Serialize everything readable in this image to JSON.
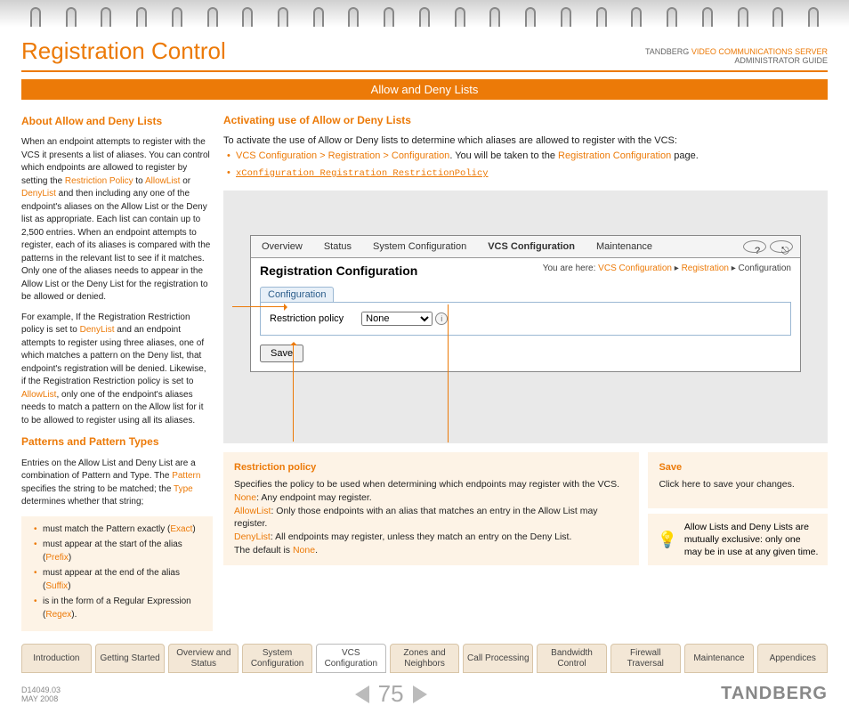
{
  "brand": {
    "company": "TANDBERG",
    "product": "VIDEO COMMUNICATIONS SERVER",
    "subtitle": "ADMINISTRATOR GUIDE",
    "logo": "TANDBERG"
  },
  "page": {
    "title": "Registration Control",
    "section_bar": "Allow and Deny Lists",
    "number": "75"
  },
  "docinfo": {
    "id": "D14049.03",
    "date": "MAY 2008"
  },
  "left": {
    "h1": "About Allow and Deny Lists",
    "p1a": "When an endpoint attempts to register with the VCS it presents a list of aliases. You can control which endpoints are allowed to register by setting the ",
    "p1b": "Restriction Policy",
    "p1c": " to ",
    "p1d": "AllowList",
    "p1e": " or ",
    "p1f": "DenyList",
    "p1g": " and then including any one of the endpoint's aliases on the Allow List or the Deny list as appropriate. Each list can contain up to 2,500 entries. When an endpoint attempts to register, each of its aliases is compared with the patterns in the relevant list to see if it matches.  Only one of the aliases needs to appear in the Allow List or the Deny List for the registration to be allowed or denied.",
    "p2a": "For example, If the Registration Restriction policy is set to ",
    "p2b": "DenyList",
    "p2c": " and an endpoint attempts to register using three aliases, one of which matches a pattern on the Deny list, that endpoint's registration will be denied. Likewise, if the Registration Restriction policy is set to ",
    "p2d": "AllowList",
    "p2e": ", only one of the endpoint's aliases needs to match a pattern on the Allow list for it to be allowed to register using all its aliases.",
    "h2": "Patterns and Pattern Types",
    "p3a": "Entries on the Allow List and Deny List are a combination of Pattern and Type.  The ",
    "p3b": "Pattern",
    "p3c": " specifies the string to be matched; the ",
    "p3d": "Type",
    "p3e": " determines whether that string;",
    "li1a": "must match the Pattern exactly (",
    "li1b": "Exact",
    "li1c": ")",
    "li2a": "must appear at the start of the alias (",
    "li2b": "Prefix",
    "li2c": ")",
    "li3a": "must appear at the end of the alias (",
    "li3b": "Suffix",
    "li3c": ")",
    "li4a": "is in the form of a Regular Expression (",
    "li4b": "Regex",
    "li4c": ")."
  },
  "right": {
    "h1": "Activating use of Allow or Deny Lists",
    "intro": "To activate the use of Allow or Deny lists to determine which aliases are allowed to register with the VCS:",
    "b1a": "VCS Configuration > Registration > Configuration",
    "b1b": ". You will be taken to the ",
    "b1c": "Registration Configuration",
    "b1d": " page.",
    "b2": "xConfiguration Registration RestrictionPolicy"
  },
  "app": {
    "tabs": [
      "Overview",
      "Status",
      "System Configuration",
      "VCS Configuration",
      "Maintenance"
    ],
    "active_tab": 3,
    "page_title": "Registration Configuration",
    "crumb_prefix": "You are here: ",
    "crumb1": "VCS Configuration",
    "crumb2": "Registration",
    "crumb3": "Configuration",
    "mini_tab": "Configuration",
    "field_label": "Restriction policy",
    "select_value": "None",
    "save": "Save"
  },
  "callouts": {
    "a_h": "Restriction policy",
    "a_p1": "Specifies the policy to be used when determining which endpoints may register with the VCS.",
    "a_none": "None",
    "a_none_t": ": Any endpoint may register.",
    "a_allow": "AllowList",
    "a_allow_t": ": Only those endpoints with an alias that matches an entry in the Allow List may register.",
    "a_deny": "DenyList",
    "a_deny_t": ": All endpoints may register, unless they match an entry on the Deny List.",
    "a_def_a": "The default is ",
    "a_def_b": "None",
    "a_def_c": ".",
    "b_h": "Save",
    "b_t": "Click here to save your changes.",
    "tip": "Allow Lists and Deny Lists are mutually exclusive: only one may be in use at any given time."
  },
  "nav": [
    "Introduction",
    "Getting Started",
    "Overview and Status",
    "System Configuration",
    "VCS Configuration",
    "Zones and Neighbors",
    "Call Processing",
    "Bandwidth Control",
    "Firewall Traversal",
    "Maintenance",
    "Appendices"
  ],
  "nav_active": 4
}
